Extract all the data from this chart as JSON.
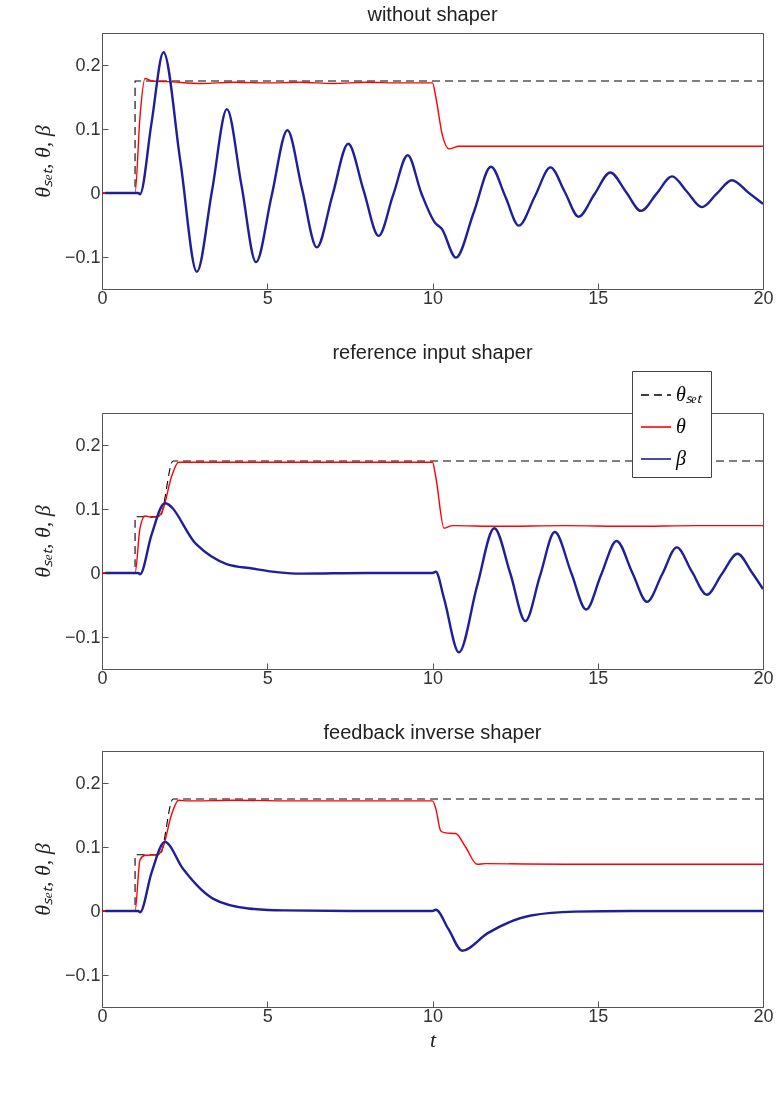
{
  "chart_data": [
    {
      "type": "line",
      "title": "without shaper",
      "ylabel": "θₛₑₜ, θ, β",
      "xlim": [
        0,
        20
      ],
      "xticks": [
        0,
        5,
        10,
        15,
        20
      ],
      "ylim": [
        -0.15,
        0.25
      ],
      "yticks": [
        -0.1,
        0,
        0.1,
        0.2
      ],
      "series": [
        {
          "color": "#000000",
          "line_style": "dashed",
          "x": [
            0,
            1,
            1,
            20
          ],
          "values": [
            0,
            0,
            0.175,
            0.175
          ]
        },
        {
          "color": "#ff0000",
          "line_style": "solid",
          "x": [
            0,
            1,
            1.15,
            1.3,
            1.5,
            2,
            3,
            4,
            5,
            6,
            7,
            8,
            9,
            10,
            10.1,
            10.3,
            10.5,
            10.8,
            12,
            14,
            16,
            18,
            20
          ],
          "values": [
            0,
            0,
            0.12,
            0.179,
            0.175,
            0.174,
            0.171,
            0.173,
            0.172,
            0.173,
            0.171,
            0.173,
            0.172,
            0.172,
            0.15,
            0.09,
            0.069,
            0.073,
            0.073,
            0.073,
            0.073,
            0.073,
            0.073
          ]
        },
        {
          "color": "#1f1f9a",
          "line_style": "solid",
          "x": [
            0.1,
            1.1,
            1.15,
            1.5,
            1.86,
            2.37,
            2.87,
            3.33,
            3.78,
            4.22,
            4.66,
            5.13,
            5.61,
            6.05,
            6.5,
            6.97,
            7.45,
            7.91,
            8.37,
            8.81,
            9.25,
            9.66,
            10.07,
            10.28,
            10.71,
            11.25,
            11.77,
            12.2,
            12.61,
            13.1,
            13.57,
            14.0,
            14.42,
            14.9,
            15.38,
            15.85,
            16.31,
            16.78,
            17.25,
            17.7,
            18.15,
            18.6,
            19.06,
            19.55,
            20
          ],
          "values": [
            0,
            0,
            -0.002,
            0.11,
            0.22,
            0.05,
            -0.123,
            0.004,
            0.131,
            0.012,
            -0.108,
            -0.005,
            0.098,
            0.007,
            -0.085,
            -0.004,
            0.077,
            0.005,
            -0.067,
            -0.003,
            0.059,
            0,
            -0.046,
            -0.056,
            -0.101,
            -0.03,
            0.041,
            -0.005,
            -0.051,
            -0.005,
            0.04,
            0.002,
            -0.037,
            -0.002,
            0.032,
            0.002,
            -0.028,
            -0.001,
            0.026,
            0.002,
            -0.022,
            -0.001,
            0.02,
            0.001,
            -0.017
          ]
        }
      ]
    },
    {
      "type": "line",
      "title": "reference input shaper",
      "ylabel": "θₛₑₜ, θ, β",
      "xlim": [
        0,
        20
      ],
      "xticks": [
        0,
        5,
        10,
        15,
        20
      ],
      "ylim": [
        -0.15,
        0.25
      ],
      "yticks": [
        -0.1,
        0,
        0.1,
        0.2
      ],
      "legend": "top right",
      "series": [
        {
          "name": "θₛₑₜ",
          "color": "#000000",
          "line_style": "dashed",
          "x": [
            0,
            1,
            1,
            1.75,
            2.15,
            20
          ],
          "values": [
            0,
            0,
            0.088,
            0.088,
            0.175,
            0.175
          ]
        },
        {
          "name": "θ",
          "color": "#ff0000",
          "line_style": "solid",
          "x": [
            0,
            1,
            1.15,
            1.3,
            1.5,
            1.7,
            1.85,
            2.1,
            2.32,
            2.6,
            4,
            6,
            8,
            10,
            10.1,
            10.35,
            10.6,
            12,
            14,
            16,
            18,
            20
          ],
          "values": [
            0,
            0,
            0.07,
            0.089,
            0.087,
            0.088,
            0.1,
            0.15,
            0.173,
            0.173,
            0.173,
            0.173,
            0.173,
            0.173,
            0.15,
            0.07,
            0.074,
            0.073,
            0.074,
            0.073,
            0.074,
            0.074
          ]
        },
        {
          "name": "β",
          "color": "#1f1f9a",
          "line_style": "solid",
          "x": [
            0.1,
            1.1,
            1.15,
            1.5,
            1.9,
            2.85,
            3.77,
            4.55,
            5.35,
            6,
            8,
            10,
            10.1,
            10.35,
            10.8,
            11.35,
            11.87,
            12.35,
            12.81,
            13.25,
            13.7,
            14.2,
            14.65,
            15.1,
            15.57,
            16.05,
            16.49,
            16.95,
            17.39,
            17.85,
            18.3,
            18.75,
            19.23,
            19.65,
            20
          ],
          "values": [
            0,
            0,
            -0.002,
            0.06,
            0.109,
            0.045,
            0.014,
            0.007,
            0.001,
            -0.001,
            0,
            0,
            0.002,
            -0.04,
            -0.124,
            -0.02,
            0.07,
            0,
            -0.075,
            -0.005,
            0.064,
            0,
            -0.057,
            -0.003,
            0.05,
            0,
            -0.045,
            -0.002,
            0.04,
            0.002,
            -0.034,
            -0.002,
            0.03,
            0.002,
            -0.025
          ]
        }
      ]
    },
    {
      "type": "line",
      "title": "feedback inverse shaper",
      "xlabel": "t",
      "ylabel": "θₛₑₜ, θ, β",
      "xlim": [
        0,
        20
      ],
      "xticks": [
        0,
        5,
        10,
        15,
        20
      ],
      "ylim": [
        -0.15,
        0.25
      ],
      "yticks": [
        -0.1,
        0,
        0.1,
        0.2
      ],
      "series": [
        {
          "color": "#000000",
          "line_style": "dashed",
          "x": [
            0,
            1,
            1,
            1.75,
            2.15,
            20
          ],
          "values": [
            0,
            0,
            0.088,
            0.088,
            0.175,
            0.175
          ]
        },
        {
          "color": "#ff0000",
          "line_style": "solid",
          "x": [
            0,
            1,
            1.15,
            1.3,
            1.7,
            1.85,
            2.1,
            2.32,
            2.6,
            4,
            6,
            8,
            10,
            10.1,
            10.25,
            10.4,
            10.7,
            11.0,
            11.35,
            11.6,
            14,
            17,
            20
          ],
          "values": [
            0,
            0,
            0.08,
            0.087,
            0.088,
            0.1,
            0.15,
            0.173,
            0.172,
            0.173,
            0.172,
            0.172,
            0.172,
            0.16,
            0.125,
            0.122,
            0.121,
            0.1,
            0.073,
            0.074,
            0.073,
            0.073,
            0.073
          ]
        },
        {
          "color": "#1f1f9a",
          "line_style": "solid",
          "x": [
            0.1,
            1.1,
            1.15,
            1.5,
            1.9,
            2.45,
            3.37,
            4.43,
            5.5,
            8,
            10,
            10.1,
            10.48,
            10.9,
            11.66,
            12.98,
            14.3,
            16,
            20
          ],
          "values": [
            0,
            0,
            -0.002,
            0.06,
            0.108,
            0.066,
            0.019,
            0.004,
            0.001,
            0,
            0,
            0.002,
            -0.028,
            -0.062,
            -0.035,
            -0.007,
            -0.001,
            0,
            0
          ]
        }
      ]
    }
  ]
}
